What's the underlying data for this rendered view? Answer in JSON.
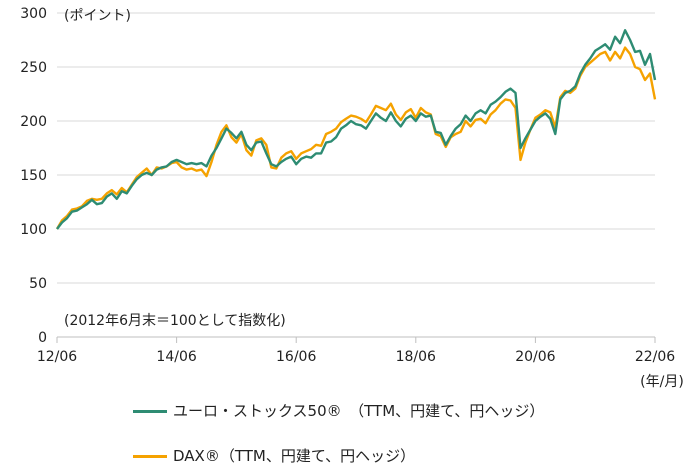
{
  "chart_data": {
    "type": "line",
    "title": "",
    "unit_label": "(ポイント)",
    "note": "(2012年6月末＝100として指数化)",
    "x_unit_label": "(年/月)",
    "ylim": [
      0,
      300
    ],
    "yticks": [
      0,
      50,
      100,
      150,
      200,
      250,
      300
    ],
    "xlim": [
      "2012-06",
      "2022-06"
    ],
    "xticks": [
      "12/06",
      "14/06",
      "16/06",
      "18/06",
      "20/06",
      "22/06"
    ],
    "grid": "horizontal",
    "legend_position": "bottom",
    "colors": {
      "series1": "#2e8c73",
      "series2": "#f5a200"
    },
    "series": [
      {
        "name": "ユーロ・ストックス50®　（TTM、円建て、円ヘッジ）",
        "points": [
          [
            "2012-06",
            100
          ],
          [
            "2012-07",
            106
          ],
          [
            "2012-08",
            110
          ],
          [
            "2012-09",
            116
          ],
          [
            "2012-10",
            117
          ],
          [
            "2012-11",
            120
          ],
          [
            "2012-12",
            123
          ],
          [
            "2013-01",
            127
          ],
          [
            "2013-02",
            123
          ],
          [
            "2013-03",
            124
          ],
          [
            "2013-04",
            130
          ],
          [
            "2013-05",
            133
          ],
          [
            "2013-06",
            128
          ],
          [
            "2013-07",
            135
          ],
          [
            "2013-08",
            133
          ],
          [
            "2013-09",
            140
          ],
          [
            "2013-10",
            146
          ],
          [
            "2013-11",
            150
          ],
          [
            "2013-12",
            152
          ],
          [
            "2014-01",
            150
          ],
          [
            "2014-02",
            155
          ],
          [
            "2014-03",
            157
          ],
          [
            "2014-04",
            158
          ],
          [
            "2014-05",
            162
          ],
          [
            "2014-06",
            164
          ],
          [
            "2014-07",
            162
          ],
          [
            "2014-08",
            160
          ],
          [
            "2014-09",
            161
          ],
          [
            "2014-10",
            160
          ],
          [
            "2014-11",
            161
          ],
          [
            "2014-12",
            158
          ],
          [
            "2015-01",
            168
          ],
          [
            "2015-02",
            175
          ],
          [
            "2015-03",
            184
          ],
          [
            "2015-04",
            193
          ],
          [
            "2015-05",
            189
          ],
          [
            "2015-06",
            184
          ],
          [
            "2015-07",
            190
          ],
          [
            "2015-08",
            178
          ],
          [
            "2015-09",
            173
          ],
          [
            "2015-10",
            180
          ],
          [
            "2015-11",
            181
          ],
          [
            "2015-12",
            170
          ],
          [
            "2016-01",
            160
          ],
          [
            "2016-02",
            158
          ],
          [
            "2016-03",
            162
          ],
          [
            "2016-04",
            165
          ],
          [
            "2016-05",
            167
          ],
          [
            "2016-06",
            160
          ],
          [
            "2016-07",
            165
          ],
          [
            "2016-08",
            167
          ],
          [
            "2016-09",
            166
          ],
          [
            "2016-10",
            170
          ],
          [
            "2016-11",
            170
          ],
          [
            "2016-12",
            180
          ],
          [
            "2017-01",
            181
          ],
          [
            "2017-02",
            185
          ],
          [
            "2017-03",
            193
          ],
          [
            "2017-04",
            196
          ],
          [
            "2017-05",
            200
          ],
          [
            "2017-06",
            197
          ],
          [
            "2017-07",
            196
          ],
          [
            "2017-08",
            193
          ],
          [
            "2017-09",
            200
          ],
          [
            "2017-10",
            207
          ],
          [
            "2017-11",
            203
          ],
          [
            "2017-12",
            200
          ],
          [
            "2018-01",
            208
          ],
          [
            "2018-02",
            200
          ],
          [
            "2018-03",
            195
          ],
          [
            "2018-04",
            202
          ],
          [
            "2018-05",
            205
          ],
          [
            "2018-06",
            200
          ],
          [
            "2018-07",
            207
          ],
          [
            "2018-08",
            204
          ],
          [
            "2018-09",
            205
          ],
          [
            "2018-10",
            190
          ],
          [
            "2018-11",
            189
          ],
          [
            "2018-12",
            178
          ],
          [
            "2019-01",
            186
          ],
          [
            "2019-02",
            193
          ],
          [
            "2019-03",
            197
          ],
          [
            "2019-04",
            205
          ],
          [
            "2019-05",
            200
          ],
          [
            "2019-06",
            207
          ],
          [
            "2019-07",
            210
          ],
          [
            "2019-08",
            207
          ],
          [
            "2019-09",
            215
          ],
          [
            "2019-10",
            218
          ],
          [
            "2019-11",
            222
          ],
          [
            "2019-12",
            227
          ],
          [
            "2020-01",
            230
          ],
          [
            "2020-02",
            226
          ],
          [
            "2020-03",
            175
          ],
          [
            "2020-04",
            184
          ],
          [
            "2020-05",
            192
          ],
          [
            "2020-06",
            200
          ],
          [
            "2020-07",
            204
          ],
          [
            "2020-08",
            207
          ],
          [
            "2020-09",
            202
          ],
          [
            "2020-10",
            188
          ],
          [
            "2020-11",
            220
          ],
          [
            "2020-12",
            226
          ],
          [
            "2021-01",
            228
          ],
          [
            "2021-02",
            232
          ],
          [
            "2021-03",
            244
          ],
          [
            "2021-04",
            252
          ],
          [
            "2021-05",
            258
          ],
          [
            "2021-06",
            265
          ],
          [
            "2021-07",
            268
          ],
          [
            "2021-08",
            271
          ],
          [
            "2021-09",
            266
          ],
          [
            "2021-10",
            278
          ],
          [
            "2021-11",
            272
          ],
          [
            "2021-12",
            284
          ],
          [
            "2022-01",
            275
          ],
          [
            "2022-02",
            264
          ],
          [
            "2022-03",
            265
          ],
          [
            "2022-04",
            252
          ],
          [
            "2022-05",
            262
          ],
          [
            "2022-06",
            238
          ]
        ]
      },
      {
        "name": "DAX®（TTM、円建て、円ヘッジ）",
        "points": [
          [
            "2012-06",
            100
          ],
          [
            "2012-07",
            108
          ],
          [
            "2012-08",
            112
          ],
          [
            "2012-09",
            118
          ],
          [
            "2012-10",
            119
          ],
          [
            "2012-11",
            121
          ],
          [
            "2012-12",
            126
          ],
          [
            "2013-01",
            128
          ],
          [
            "2013-02",
            127
          ],
          [
            "2013-03",
            128
          ],
          [
            "2013-04",
            133
          ],
          [
            "2013-05",
            136
          ],
          [
            "2013-06",
            132
          ],
          [
            "2013-07",
            138
          ],
          [
            "2013-08",
            134
          ],
          [
            "2013-09",
            141
          ],
          [
            "2013-10",
            148
          ],
          [
            "2013-11",
            152
          ],
          [
            "2013-12",
            156
          ],
          [
            "2014-01",
            150
          ],
          [
            "2014-02",
            157
          ],
          [
            "2014-03",
            156
          ],
          [
            "2014-04",
            158
          ],
          [
            "2014-05",
            161
          ],
          [
            "2014-06",
            162
          ],
          [
            "2014-07",
            157
          ],
          [
            "2014-08",
            155
          ],
          [
            "2014-09",
            156
          ],
          [
            "2014-10",
            154
          ],
          [
            "2014-11",
            155
          ],
          [
            "2014-12",
            149
          ],
          [
            "2015-01",
            162
          ],
          [
            "2015-02",
            178
          ],
          [
            "2015-03",
            190
          ],
          [
            "2015-04",
            196
          ],
          [
            "2015-05",
            185
          ],
          [
            "2015-06",
            180
          ],
          [
            "2015-07",
            188
          ],
          [
            "2015-08",
            173
          ],
          [
            "2015-09",
            168
          ],
          [
            "2015-10",
            182
          ],
          [
            "2015-11",
            184
          ],
          [
            "2015-12",
            178
          ],
          [
            "2016-01",
            157
          ],
          [
            "2016-02",
            156
          ],
          [
            "2016-03",
            166
          ],
          [
            "2016-04",
            170
          ],
          [
            "2016-05",
            172
          ],
          [
            "2016-06",
            165
          ],
          [
            "2016-07",
            170
          ],
          [
            "2016-08",
            172
          ],
          [
            "2016-09",
            174
          ],
          [
            "2016-10",
            178
          ],
          [
            "2016-11",
            177
          ],
          [
            "2016-12",
            188
          ],
          [
            "2017-01",
            190
          ],
          [
            "2017-02",
            193
          ],
          [
            "2017-03",
            199
          ],
          [
            "2017-04",
            202
          ],
          [
            "2017-05",
            205
          ],
          [
            "2017-06",
            204
          ],
          [
            "2017-07",
            202
          ],
          [
            "2017-08",
            199
          ],
          [
            "2017-09",
            206
          ],
          [
            "2017-10",
            214
          ],
          [
            "2017-11",
            212
          ],
          [
            "2017-12",
            210
          ],
          [
            "2018-01",
            216
          ],
          [
            "2018-02",
            206
          ],
          [
            "2018-03",
            201
          ],
          [
            "2018-04",
            208
          ],
          [
            "2018-05",
            211
          ],
          [
            "2018-06",
            203
          ],
          [
            "2018-07",
            212
          ],
          [
            "2018-08",
            208
          ],
          [
            "2018-09",
            206
          ],
          [
            "2018-10",
            188
          ],
          [
            "2018-11",
            186
          ],
          [
            "2018-12",
            176
          ],
          [
            "2019-01",
            185
          ],
          [
            "2019-02",
            188
          ],
          [
            "2019-03",
            190
          ],
          [
            "2019-04",
            200
          ],
          [
            "2019-05",
            195
          ],
          [
            "2019-06",
            201
          ],
          [
            "2019-07",
            202
          ],
          [
            "2019-08",
            198
          ],
          [
            "2019-09",
            206
          ],
          [
            "2019-10",
            210
          ],
          [
            "2019-11",
            216
          ],
          [
            "2019-12",
            220
          ],
          [
            "2020-01",
            219
          ],
          [
            "2020-02",
            212
          ],
          [
            "2020-03",
            164
          ],
          [
            "2020-04",
            180
          ],
          [
            "2020-05",
            192
          ],
          [
            "2020-06",
            203
          ],
          [
            "2020-07",
            206
          ],
          [
            "2020-08",
            210
          ],
          [
            "2020-09",
            208
          ],
          [
            "2020-10",
            194
          ],
          [
            "2020-11",
            222
          ],
          [
            "2020-12",
            228
          ],
          [
            "2021-01",
            226
          ],
          [
            "2021-02",
            230
          ],
          [
            "2021-03",
            242
          ],
          [
            "2021-04",
            250
          ],
          [
            "2021-05",
            254
          ],
          [
            "2021-06",
            258
          ],
          [
            "2021-07",
            262
          ],
          [
            "2021-08",
            264
          ],
          [
            "2021-09",
            256
          ],
          [
            "2021-10",
            264
          ],
          [
            "2021-11",
            258
          ],
          [
            "2021-12",
            268
          ],
          [
            "2022-01",
            262
          ],
          [
            "2022-02",
            250
          ],
          [
            "2022-03",
            248
          ],
          [
            "2022-04",
            238
          ],
          [
            "2022-05",
            244
          ],
          [
            "2022-06",
            220
          ]
        ]
      }
    ]
  }
}
